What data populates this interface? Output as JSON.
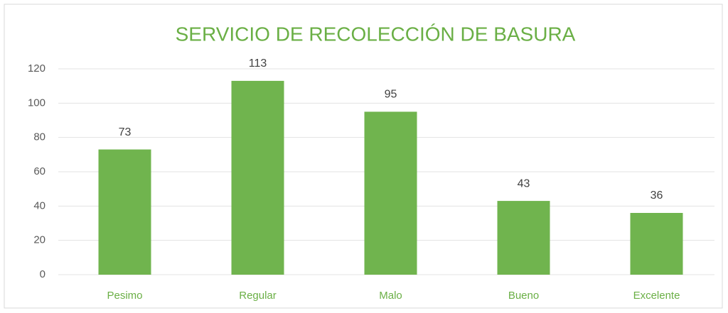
{
  "chart_data": {
    "type": "bar",
    "title": "SERVICIO DE RECOLECCIÓN DE BASURA",
    "categories": [
      "Pesimo",
      "Regular",
      "Malo",
      "Bueno",
      "Excelente"
    ],
    "values": [
      73,
      113,
      95,
      43,
      36
    ],
    "color": "#70b44e",
    "ylim": [
      0,
      120
    ],
    "yticks": [
      0,
      20,
      40,
      60,
      80,
      100,
      120
    ],
    "grid": true
  }
}
